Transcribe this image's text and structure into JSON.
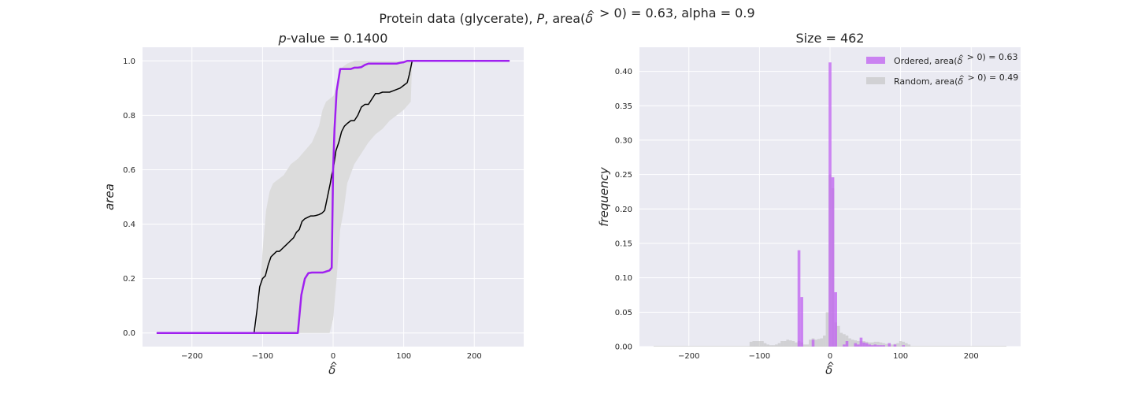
{
  "figure": {
    "suptitle": "Protein data (glycerate), P, area(δ̂ > 0) = 0.63, alpha = 0.9"
  },
  "chart_data": [
    {
      "type": "line",
      "title": "p-value = 0.1400",
      "xlabel": "δ̂",
      "ylabel": "area",
      "xlim": [
        -270,
        270
      ],
      "ylim": [
        -0.05,
        1.05
      ],
      "xticks": [
        -200,
        -100,
        0,
        100,
        200
      ],
      "xtick_labels": [
        "−200",
        "−100",
        "0",
        "100",
        "200"
      ],
      "yticks": [
        0.0,
        0.2,
        0.4,
        0.6,
        0.8,
        1.0
      ],
      "ytick_labels": [
        "0.0",
        "0.2",
        "0.4",
        "0.6",
        "0.8",
        "1.0"
      ],
      "grid": true,
      "colors": {
        "ordered": "#a020f0",
        "random": "#000000",
        "band": "#dcdcdc"
      },
      "band": {
        "x": [
          -250,
          -110,
          -105,
          -100,
          -95,
          -90,
          -85,
          -80,
          -70,
          -60,
          -50,
          -40,
          -30,
          -20,
          -15,
          -10,
          -5,
          0,
          5,
          10,
          15,
          20,
          30,
          40,
          50,
          60,
          70,
          80,
          90,
          100,
          110,
          112,
          250
        ],
        "lower": [
          0,
          0,
          0,
          0,
          0,
          0,
          0,
          0,
          0,
          0,
          0,
          0,
          0,
          0,
          0,
          0,
          0,
          0.05,
          0.2,
          0.38,
          0.45,
          0.55,
          0.62,
          0.66,
          0.7,
          0.73,
          0.75,
          0.78,
          0.8,
          0.82,
          0.85,
          1.0,
          1.0
        ],
        "upper": [
          0,
          0,
          0.1,
          0.3,
          0.45,
          0.52,
          0.55,
          0.56,
          0.58,
          0.62,
          0.64,
          0.67,
          0.7,
          0.76,
          0.82,
          0.85,
          0.86,
          0.87,
          0.9,
          0.97,
          0.98,
          0.99,
          1.0,
          1.0,
          1.0,
          1.0,
          1.0,
          1.0,
          1.0,
          1.0,
          1.0,
          1.0,
          1.0
        ]
      },
      "series": [
        {
          "x": [
            -250,
            -112,
            -108,
            -104,
            -100,
            -96,
            -92,
            -88,
            -84,
            -80,
            -76,
            -72,
            -68,
            -64,
            -60,
            -56,
            -52,
            -48,
            -44,
            -40,
            -36,
            -32,
            -28,
            -24,
            -20,
            -16,
            -12,
            -8,
            -4,
            -2,
            0,
            4,
            8,
            12,
            16,
            20,
            25,
            30,
            35,
            40,
            45,
            50,
            55,
            60,
            65,
            70,
            75,
            80,
            85,
            90,
            95,
            100,
            105,
            108,
            112,
            250
          ],
          "y": [
            0,
            0,
            0.08,
            0.17,
            0.2,
            0.21,
            0.25,
            0.28,
            0.29,
            0.3,
            0.3,
            0.31,
            0.32,
            0.33,
            0.34,
            0.35,
            0.37,
            0.38,
            0.41,
            0.42,
            0.425,
            0.43,
            0.43,
            0.432,
            0.435,
            0.44,
            0.45,
            0.5,
            0.55,
            0.58,
            0.6,
            0.67,
            0.7,
            0.74,
            0.76,
            0.77,
            0.78,
            0.78,
            0.8,
            0.83,
            0.84,
            0.84,
            0.86,
            0.88,
            0.88,
            0.885,
            0.885,
            0.885,
            0.89,
            0.895,
            0.9,
            0.91,
            0.92,
            0.95,
            1.0,
            1.0
          ]
        },
        {
          "x": [
            -250,
            -50,
            -45,
            -40,
            -35,
            -30,
            -25,
            -20,
            -15,
            -12,
            -10,
            -5,
            -2,
            0,
            2,
            5,
            10,
            15,
            20,
            25,
            30,
            35,
            40,
            45,
            50,
            55,
            60,
            70,
            80,
            90,
            95,
            100,
            105,
            110,
            250
          ],
          "y": [
            0,
            0,
            0.14,
            0.2,
            0.22,
            0.222,
            0.222,
            0.222,
            0.222,
            0.224,
            0.226,
            0.23,
            0.24,
            0.6,
            0.75,
            0.89,
            0.97,
            0.97,
            0.97,
            0.97,
            0.975,
            0.975,
            0.977,
            0.985,
            0.99,
            0.99,
            0.99,
            0.99,
            0.99,
            0.99,
            0.993,
            0.995,
            1.0,
            1.0,
            1.0
          ]
        }
      ]
    },
    {
      "type": "bar",
      "title": "Size = 462",
      "xlabel": "δ̂",
      "ylabel": "frequency",
      "xlim": [
        -270,
        270
      ],
      "ylim": [
        0,
        0.435
      ],
      "xticks": [
        -200,
        -100,
        0,
        100,
        200
      ],
      "xtick_labels": [
        "−200",
        "−100",
        "0",
        "100",
        "200"
      ],
      "yticks": [
        0.0,
        0.05,
        0.1,
        0.15,
        0.2,
        0.25,
        0.3,
        0.35,
        0.4
      ],
      "ytick_labels": [
        "0.00",
        "0.05",
        "0.10",
        "0.15",
        "0.20",
        "0.25",
        "0.30",
        "0.35",
        "0.40"
      ],
      "grid": true,
      "legend_position": "top-right",
      "bin_width": 4,
      "colors": {
        "ordered": "#bf5ff0",
        "random": "#c0c0c0"
      },
      "series": [
        {
          "name": "Ordered, area(δ̂ > 0) = 0.63",
          "bin_left": [
            -46,
            -42,
            -38,
            -34,
            -30,
            -26,
            -22,
            -18,
            -14,
            -10,
            -6,
            -2,
            2,
            6,
            10,
            14,
            18,
            22,
            26,
            30,
            34,
            38,
            42,
            46,
            50,
            54,
            58,
            62,
            66,
            70,
            74,
            78,
            82,
            86,
            90,
            94,
            98,
            102
          ],
          "values": [
            0.14,
            0.072,
            0.0,
            0.0,
            0.0,
            0.01,
            0.0,
            0.0,
            0.0,
            0.0,
            0.0,
            0.413,
            0.246,
            0.079,
            0.0,
            0.0,
            0.003,
            0.008,
            0.0,
            0.0,
            0.005,
            0.003,
            0.013,
            0.006,
            0.005,
            0.003,
            0.002,
            0.003,
            0.002,
            0.002,
            0.002,
            0.0,
            0.005,
            0.0,
            0.003,
            0.0,
            0.0,
            0.002
          ]
        },
        {
          "name": "Random, area(δ̂ > 0) = 0.49",
          "bin_left": [
            -250,
            -114,
            -110,
            -106,
            -102,
            -98,
            -94,
            -90,
            -86,
            -82,
            -78,
            -74,
            -70,
            -66,
            -62,
            -58,
            -54,
            -50,
            -46,
            -42,
            -38,
            -34,
            -30,
            -26,
            -22,
            -18,
            -14,
            -10,
            -6,
            -2,
            2,
            6,
            10,
            14,
            18,
            22,
            26,
            30,
            34,
            38,
            42,
            46,
            50,
            54,
            58,
            62,
            66,
            70,
            74,
            78,
            82,
            86,
            90,
            94,
            98,
            102,
            106,
            110
          ],
          "values": [
            0.001,
            0.007,
            0.008,
            0.008,
            0.008,
            0.008,
            0.005,
            0.003,
            0.002,
            0.002,
            0.003,
            0.005,
            0.008,
            0.008,
            0.01,
            0.009,
            0.008,
            0.006,
            0.008,
            0.006,
            0.003,
            0.003,
            0.01,
            0.012,
            0.01,
            0.011,
            0.012,
            0.016,
            0.05,
            0.25,
            0.23,
            0.035,
            0.03,
            0.02,
            0.018,
            0.016,
            0.012,
            0.01,
            0.009,
            0.008,
            0.008,
            0.008,
            0.007,
            0.006,
            0.006,
            0.007,
            0.007,
            0.006,
            0.005,
            0.004,
            0.003,
            0.003,
            0.004,
            0.005,
            0.008,
            0.007,
            0.005,
            0.003
          ]
        }
      ]
    }
  ]
}
